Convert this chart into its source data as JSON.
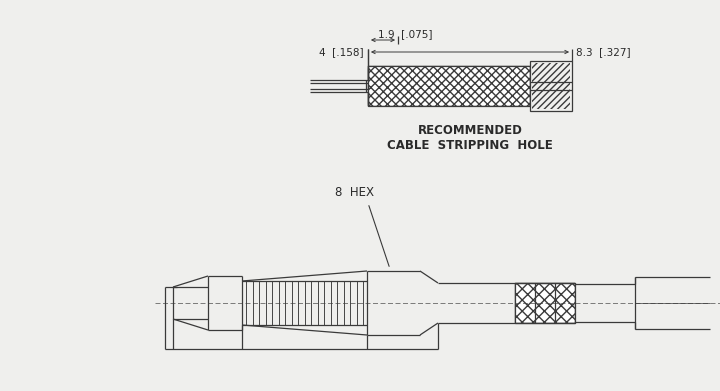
{
  "bg_color": "#efefed",
  "line_color": "#3a3a3a",
  "text_color": "#2a2a2a",
  "title1": "RECOMMENDED",
  "title2": "CABLE  STRIPPING  HOLE",
  "label_8hex": "8  HEX",
  "dim1_text": "4  [.158]",
  "dim2_text": "1.9  [.075]",
  "dim3_text": "8.3  [.327]"
}
